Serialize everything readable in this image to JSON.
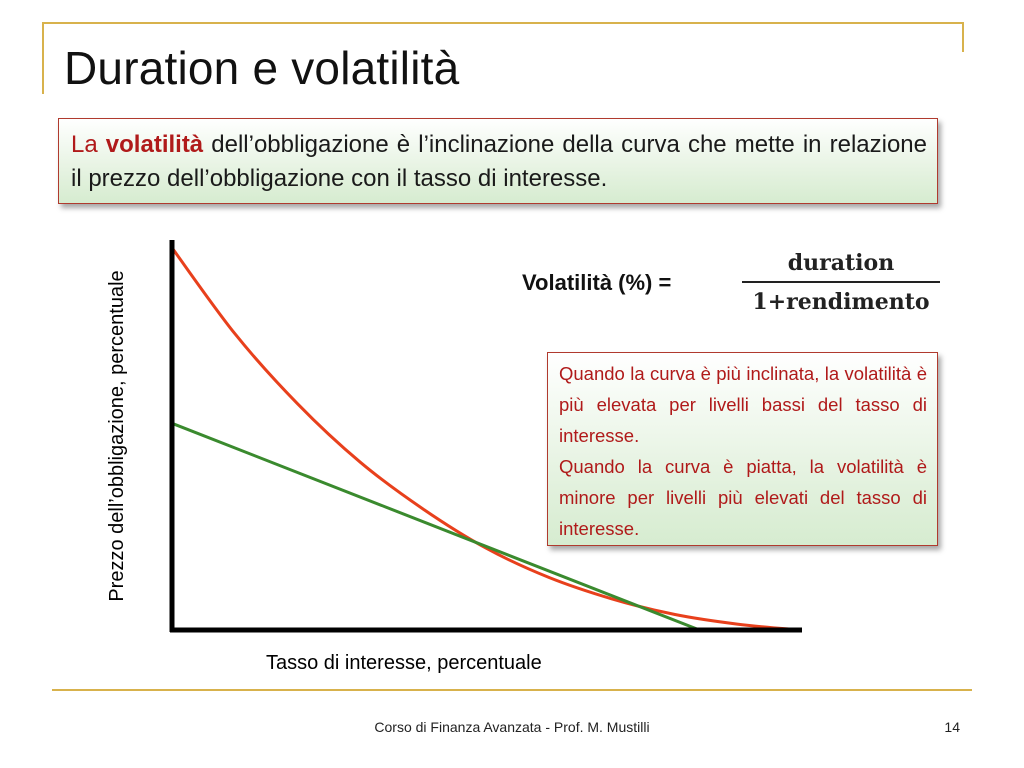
{
  "slide": {
    "title": "Duration e volatilità",
    "definition": {
      "lead": "La",
      "highlight": "volatilità",
      "rest": "dell’obbligazione è l’inclinazione della curva che mette in relazione il prezzo dell’obbligazione con il tasso di interesse."
    },
    "formula": {
      "label": "Volatilità (%) =",
      "numerator": "duration",
      "denominator": "1+rendimento"
    },
    "note": {
      "p1": "Quando la curva è più inclinata, la volatilità è più elevata per livelli bassi del tasso di interesse.",
      "p2": "Quando la curva è piatta, la volatilità è minore per livelli più elevati del tasso di interesse."
    },
    "footer": {
      "course": "Corso di Finanza Avanzata - Prof. M. Mustilli",
      "page": "14"
    },
    "colors": {
      "accent_gold": "#d8b24c",
      "price_curve": "#e8401c",
      "tangent_line": "#3a8a2e",
      "box_border": "#b03a2e",
      "box_text": "#b01a1a"
    }
  },
  "chart_data": {
    "type": "line",
    "xlabel": "Tasso di interesse, percentuale",
    "ylabel": "Prezzo dell’obbligazione, percentuale",
    "ticks": "none",
    "xlim": [
      0,
      10
    ],
    "ylim": [
      0,
      10
    ],
    "series": [
      {
        "kind": "convex price-yield curve",
        "color": "#e8401c",
        "x": [
          0,
          1,
          2,
          3,
          4,
          5,
          6,
          7,
          8,
          9,
          10
        ],
        "y": [
          9.8,
          7.6,
          5.8,
          4.3,
          3.1,
          2.1,
          1.35,
          0.8,
          0.4,
          0.15,
          0.0
        ]
      },
      {
        "kind": "tangent line",
        "color": "#3a8a2e",
        "x": [
          0,
          8.4
        ],
        "y": [
          5.3,
          0.0
        ]
      }
    ]
  }
}
